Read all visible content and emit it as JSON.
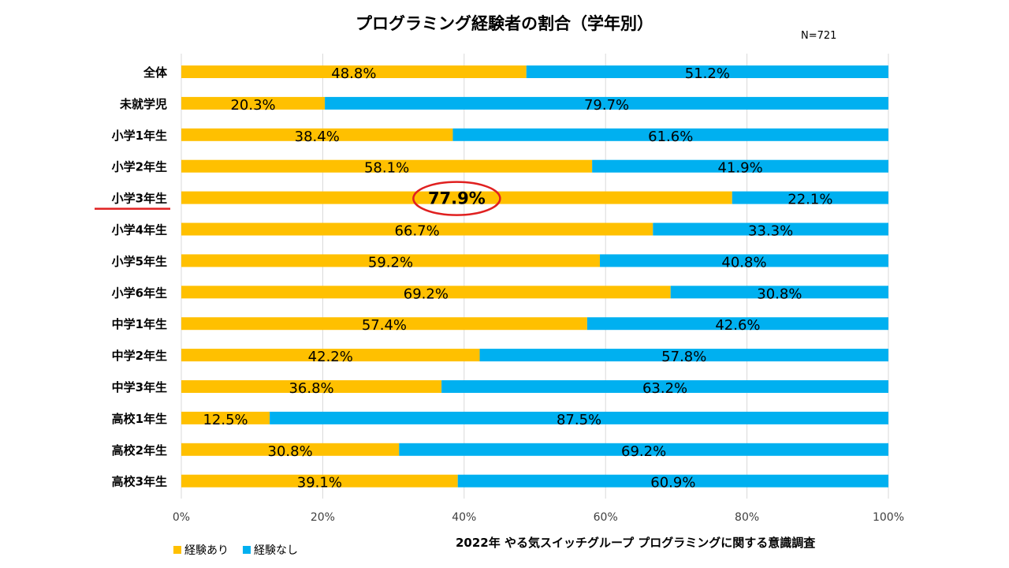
{
  "chart_data": {
    "type": "bar",
    "orientation": "horizontal",
    "stacked": true,
    "title": "プログラミング経験者の割合（学年別）",
    "sample_size": "N=721",
    "source": "2022年 やる気スイッチグループ プログラミングに関する意識調査",
    "categories": [
      "全体",
      "未就学児",
      "小学1年生",
      "小学2年生",
      "小学3年生",
      "小学4年生",
      "小学5年生",
      "小学6年生",
      "中学1年生",
      "中学2年生",
      "中学3年生",
      "高校1年生",
      "高校2年生",
      "高校3年生"
    ],
    "series": [
      {
        "name": "経験あり",
        "color": "#FFC000",
        "values": [
          48.8,
          20.3,
          38.4,
          58.1,
          77.9,
          66.7,
          59.2,
          69.2,
          57.4,
          42.2,
          36.8,
          12.5,
          30.8,
          39.1
        ],
        "labels": [
          "48.8%",
          "20.3%",
          "38.4%",
          "58.1%",
          "77.9%",
          "66.7%",
          "59.2%",
          "69.2%",
          "57.4%",
          "42.2%",
          "36.8%",
          "12.5%",
          "30.8%",
          "39.1%"
        ]
      },
      {
        "name": "経験なし",
        "color": "#00B0F0",
        "values": [
          51.2,
          79.7,
          61.6,
          41.9,
          22.1,
          33.3,
          40.8,
          30.8,
          42.6,
          57.8,
          63.2,
          87.5,
          69.2,
          60.9
        ],
        "labels": [
          "51.2%",
          "79.7%",
          "61.6%",
          "41.9%",
          "22.1%",
          "33.3%",
          "40.8%",
          "30.8%",
          "42.6%",
          "57.8%",
          "63.2%",
          "87.5%",
          "69.2%",
          "60.9%"
        ]
      }
    ],
    "x_ticks": [
      "0%",
      "20%",
      "40%",
      "60%",
      "80%",
      "100%"
    ],
    "xlim": [
      0,
      100
    ],
    "grid": true,
    "legend_position": "bottom-left",
    "highlight": {
      "category": "小学3年生",
      "series": "経験あり",
      "value_label": "77.9%",
      "accent": "#E02020"
    }
  }
}
